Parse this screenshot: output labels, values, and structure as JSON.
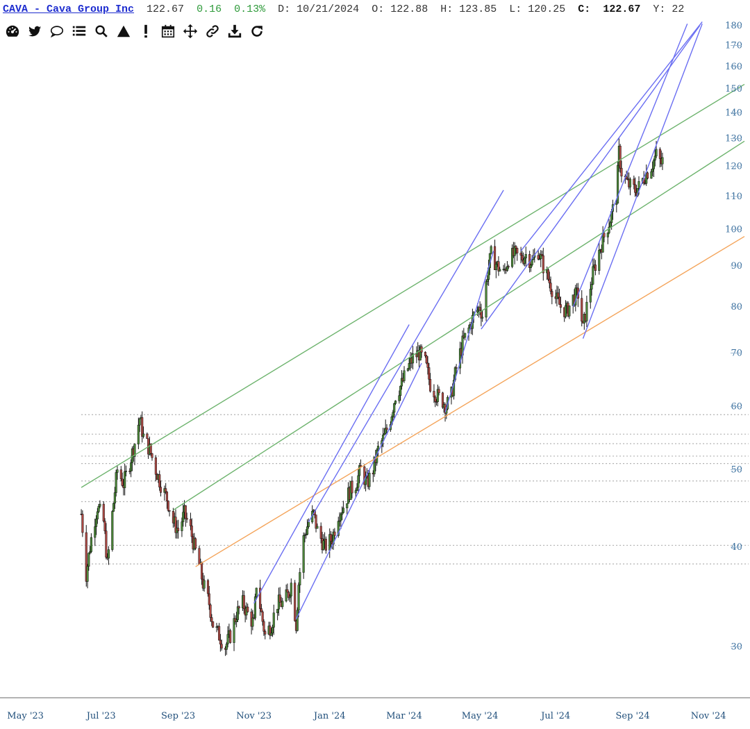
{
  "header": {
    "title": "CAVA - Cava Group Inc",
    "last": "122.67",
    "change": "0.16",
    "change_pct": "0.13%",
    "date": "D: 10/21/2024",
    "open": "O: 122.88",
    "high": "H: 123.85",
    "low": "L: 120.25",
    "close_label": "C:",
    "close": "122.67",
    "more": "Y: 22"
  },
  "toolbar": {
    "icons": [
      "dashboard-icon",
      "twitter-bird-icon",
      "comment-bubble-icon",
      "list-icon",
      "search-icon",
      "triangle-icon",
      "exclamation-icon",
      "calendar-icon",
      "move-arrows-icon",
      "link-icon",
      "download-icon",
      "refresh-icon"
    ]
  },
  "colors": {
    "up_candle": "#4d8a3a",
    "down_candle": "#b04a45",
    "wick": "#111111",
    "green_channel": "#6db36d",
    "orange_trend": "#f4a45a",
    "blue_channel": "#6a6ef2",
    "dotted_levels": "#b0b0b0",
    "axis_text": "#3a6f9e"
  },
  "chart_data": {
    "type": "candlestick",
    "symbol": "CAVA",
    "y_scale": "log",
    "ylim": [
      26,
      180
    ],
    "y_ticks": [
      30,
      40,
      50,
      60,
      70,
      80,
      90,
      100,
      110,
      120,
      130,
      140,
      150,
      160,
      170,
      180
    ],
    "x_range": [
      "2023-04-15",
      "2024-11-30"
    ],
    "x_ticks": [
      {
        "date": "2023-05-01",
        "label": "May '23"
      },
      {
        "date": "2023-07-01",
        "label": "Jul '23"
      },
      {
        "date": "2023-09-01",
        "label": "Sep '23"
      },
      {
        "date": "2023-11-01",
        "label": "Nov '23"
      },
      {
        "date": "2024-01-01",
        "label": "Jan '24"
      },
      {
        "date": "2024-03-01",
        "label": "Mar '24"
      },
      {
        "date": "2024-05-01",
        "label": "May '24"
      },
      {
        "date": "2024-07-01",
        "label": "Jul '24"
      },
      {
        "date": "2024-09-01",
        "label": "Sep '24"
      },
      {
        "date": "2024-11-01",
        "label": "Nov '24"
      }
    ],
    "price_path": [
      [
        "2023-06-15",
        44
      ],
      [
        "2023-06-19",
        37
      ],
      [
        "2023-06-23",
        41
      ],
      [
        "2023-06-28",
        45
      ],
      [
        "2023-07-03",
        43
      ],
      [
        "2023-07-06",
        38
      ],
      [
        "2023-07-10",
        44
      ],
      [
        "2023-07-14",
        50
      ],
      [
        "2023-07-19",
        48
      ],
      [
        "2023-07-24",
        51
      ],
      [
        "2023-07-28",
        54
      ],
      [
        "2023-08-01",
        58
      ],
      [
        "2023-08-04",
        55
      ],
      [
        "2023-08-09",
        53
      ],
      [
        "2023-08-14",
        50
      ],
      [
        "2023-08-18",
        48
      ],
      [
        "2023-08-23",
        46
      ],
      [
        "2023-08-28",
        43
      ],
      [
        "2023-09-01",
        42
      ],
      [
        "2023-09-06",
        44
      ],
      [
        "2023-09-11",
        42
      ],
      [
        "2023-09-14",
        40
      ],
      [
        "2023-09-18",
        38
      ],
      [
        "2023-09-21",
        36
      ],
      [
        "2023-09-26",
        34
      ],
      [
        "2023-09-29",
        32
      ],
      [
        "2023-10-04",
        31
      ],
      [
        "2023-10-09",
        30
      ],
      [
        "2023-10-13",
        31
      ],
      [
        "2023-10-18",
        33
      ],
      [
        "2023-10-23",
        34
      ],
      [
        "2023-10-27",
        33
      ],
      [
        "2023-11-01",
        32
      ],
      [
        "2023-11-03",
        36
      ],
      [
        "2023-11-07",
        33
      ],
      [
        "2023-11-10",
        31
      ],
      [
        "2023-11-15",
        32
      ],
      [
        "2023-11-20",
        34
      ],
      [
        "2023-11-24",
        34
      ],
      [
        "2023-11-29",
        35
      ],
      [
        "2023-12-01",
        36
      ],
      [
        "2023-12-05",
        32
      ],
      [
        "2023-12-07",
        36
      ],
      [
        "2023-12-11",
        41
      ],
      [
        "2023-12-15",
        43
      ],
      [
        "2023-12-19",
        44
      ],
      [
        "2023-12-22",
        42
      ],
      [
        "2023-12-28",
        40
      ],
      [
        "2024-01-03",
        41
      ],
      [
        "2024-01-08",
        44
      ],
      [
        "2024-01-12",
        45
      ],
      [
        "2024-01-17",
        47
      ],
      [
        "2024-01-22",
        48
      ],
      [
        "2024-01-26",
        50
      ],
      [
        "2024-01-31",
        48
      ],
      [
        "2024-02-05",
        50
      ],
      [
        "2024-02-09",
        53
      ],
      [
        "2024-02-14",
        55
      ],
      [
        "2024-02-19",
        58
      ],
      [
        "2024-02-23",
        62
      ],
      [
        "2024-02-28",
        64
      ],
      [
        "2024-03-04",
        67
      ],
      [
        "2024-03-08",
        69
      ],
      [
        "2024-03-13",
        70
      ],
      [
        "2024-03-18",
        68
      ],
      [
        "2024-03-22",
        64
      ],
      [
        "2024-03-27",
        62
      ],
      [
        "2024-04-01",
        61
      ],
      [
        "2024-04-04",
        60
      ],
      [
        "2024-04-08",
        62
      ],
      [
        "2024-04-12",
        67
      ],
      [
        "2024-04-17",
        72
      ],
      [
        "2024-04-22",
        75
      ],
      [
        "2024-04-26",
        78
      ],
      [
        "2024-05-01",
        80
      ],
      [
        "2024-05-03",
        78
      ],
      [
        "2024-05-07",
        88
      ],
      [
        "2024-05-10",
        93
      ],
      [
        "2024-05-15",
        90
      ],
      [
        "2024-05-20",
        88
      ],
      [
        "2024-05-24",
        92
      ],
      [
        "2024-05-29",
        93
      ],
      [
        "2024-06-03",
        92
      ],
      [
        "2024-06-07",
        93
      ],
      [
        "2024-06-12",
        91
      ],
      [
        "2024-06-17",
        94
      ],
      [
        "2024-06-21",
        90
      ],
      [
        "2024-06-26",
        86
      ],
      [
        "2024-07-01",
        82
      ],
      [
        "2024-07-05",
        80
      ],
      [
        "2024-07-10",
        79
      ],
      [
        "2024-07-15",
        82
      ],
      [
        "2024-07-19",
        83
      ],
      [
        "2024-07-23",
        75
      ],
      [
        "2024-07-26",
        80
      ],
      [
        "2024-07-31",
        88
      ],
      [
        "2024-08-05",
        94
      ],
      [
        "2024-08-09",
        98
      ],
      [
        "2024-08-14",
        103
      ],
      [
        "2024-08-19",
        110
      ],
      [
        "2024-08-21",
        125
      ],
      [
        "2024-08-23",
        118
      ],
      [
        "2024-08-28",
        114
      ],
      [
        "2024-09-03",
        112
      ],
      [
        "2024-09-06",
        113
      ],
      [
        "2024-09-11",
        117
      ],
      [
        "2024-09-16",
        120
      ],
      [
        "2024-09-20",
        124
      ],
      [
        "2024-09-24",
        121
      ],
      [
        "2024-09-26",
        122.67
      ]
    ],
    "trendlines": [
      {
        "kind": "green",
        "from": [
          "2023-06-15",
          47.5
        ],
        "to": [
          "2024-11-30",
          152
        ]
      },
      {
        "kind": "green",
        "from": [
          "2023-08-28",
          44.5
        ],
        "to": [
          "2024-11-30",
          129
        ]
      },
      {
        "kind": "orange",
        "from": [
          "2023-09-15",
          37.8
        ],
        "to": [
          "2024-11-30",
          98
        ]
      },
      {
        "kind": "blue",
        "from": [
          "2023-11-01",
          34
        ],
        "to": [
          "2024-03-05",
          76
        ]
      },
      {
        "kind": "blue",
        "from": [
          "2023-12-05",
          32.5
        ],
        "to": [
          "2024-03-15",
          68
        ]
      },
      {
        "kind": "blue",
        "from": [
          "2023-12-15",
          43
        ],
        "to": [
          "2024-05-20",
          112
        ]
      },
      {
        "kind": "blue",
        "from": [
          "2024-04-03",
          59
        ],
        "to": [
          "2024-05-12",
          94
        ]
      },
      {
        "kind": "blue",
        "from": [
          "2024-05-02",
          75
        ],
        "to": [
          "2024-10-25",
          180
        ]
      },
      {
        "kind": "blue",
        "from": [
          "2024-06-03",
          94
        ],
        "to": [
          "2024-10-27",
          182
        ]
      },
      {
        "kind": "blue",
        "from": [
          "2024-07-15",
          80
        ],
        "to": [
          "2024-10-15",
          181
        ]
      },
      {
        "kind": "blue",
        "from": [
          "2024-07-23",
          73
        ],
        "to": [
          "2024-10-27",
          181
        ]
      }
    ],
    "horizontal_levels": [
      58.6,
      55.4,
      53.9,
      52.0,
      50.9,
      48.4,
      45.6,
      40.2,
      38.1
    ]
  }
}
